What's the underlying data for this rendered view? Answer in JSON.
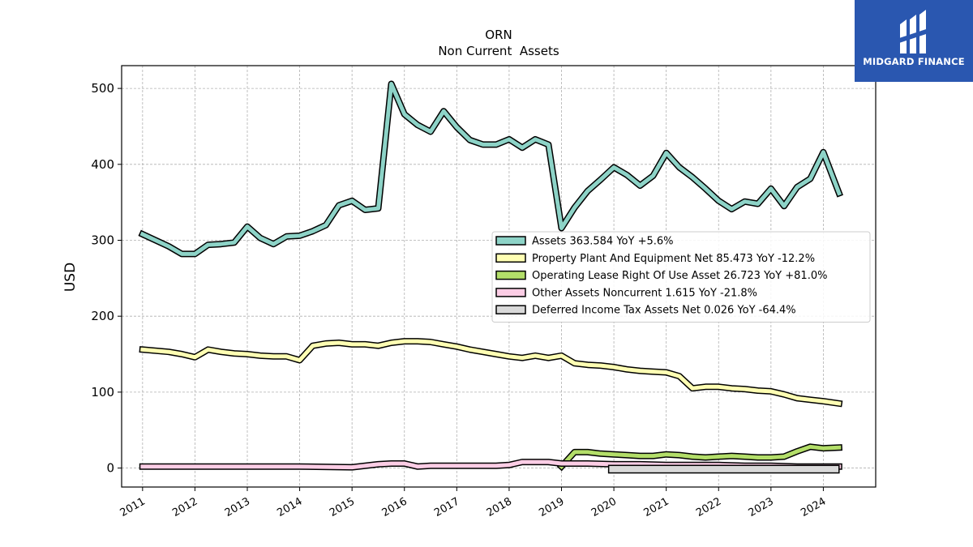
{
  "chart_data": {
    "type": "line",
    "title": "ORN",
    "subtitle": "Non Current  Assets",
    "ylabel": "USD",
    "xlabel": "",
    "xlim": [
      2010.6,
      2025.0
    ],
    "ylim": [
      -25,
      530
    ],
    "yticks": [
      0,
      100,
      200,
      300,
      400,
      500
    ],
    "xticks": [
      "2011",
      "2012",
      "2013",
      "2014",
      "2015",
      "2016",
      "2017",
      "2018",
      "2019",
      "2020",
      "2021",
      "2022",
      "2023",
      "2024"
    ],
    "grid": true,
    "legend_position": "right",
    "series": [
      {
        "name": "Assets  363.584 YoY +5.6%",
        "color": "#8dd3c7",
        "points": [
          [
            2011.0,
            308
          ],
          [
            2011.5,
            292
          ],
          [
            2011.75,
            282
          ],
          [
            2012.0,
            282
          ],
          [
            2012.25,
            294
          ],
          [
            2012.5,
            295
          ],
          [
            2012.75,
            297
          ],
          [
            2013.0,
            318
          ],
          [
            2013.25,
            303
          ],
          [
            2013.5,
            295
          ],
          [
            2013.75,
            305
          ],
          [
            2014.0,
            306
          ],
          [
            2014.25,
            312
          ],
          [
            2014.5,
            320
          ],
          [
            2014.75,
            346
          ],
          [
            2015.0,
            352
          ],
          [
            2015.25,
            340
          ],
          [
            2015.5,
            342
          ],
          [
            2015.75,
            506
          ],
          [
            2016.0,
            466
          ],
          [
            2016.25,
            452
          ],
          [
            2016.5,
            443
          ],
          [
            2016.75,
            470
          ],
          [
            2017.0,
            449
          ],
          [
            2017.25,
            432
          ],
          [
            2017.5,
            426
          ],
          [
            2017.75,
            426
          ],
          [
            2018.0,
            433
          ],
          [
            2018.25,
            422
          ],
          [
            2018.5,
            433
          ],
          [
            2018.75,
            426
          ],
          [
            2019.0,
            316
          ],
          [
            2019.25,
            343
          ],
          [
            2019.5,
            365
          ],
          [
            2019.75,
            380
          ],
          [
            2020.0,
            396
          ],
          [
            2020.25,
            386
          ],
          [
            2020.5,
            372
          ],
          [
            2020.75,
            385
          ],
          [
            2021.0,
            415
          ],
          [
            2021.25,
            396
          ],
          [
            2021.5,
            383
          ],
          [
            2021.75,
            368
          ],
          [
            2022.0,
            352
          ],
          [
            2022.25,
            341
          ],
          [
            2022.5,
            351
          ],
          [
            2022.75,
            348
          ],
          [
            2023.0,
            368
          ],
          [
            2023.25,
            345
          ],
          [
            2023.5,
            370
          ],
          [
            2023.75,
            381
          ],
          [
            2024.0,
            416
          ],
          [
            2024.3,
            362
          ]
        ]
      },
      {
        "name": "Property Plant And Equipment Net  85.473 YoY -12.2%",
        "color": "#ffffb3",
        "points": [
          [
            2011.0,
            156
          ],
          [
            2011.5,
            153
          ],
          [
            2011.75,
            150
          ],
          [
            2012.0,
            146
          ],
          [
            2012.25,
            156
          ],
          [
            2012.5,
            153
          ],
          [
            2012.75,
            151
          ],
          [
            2013.0,
            150
          ],
          [
            2013.25,
            148
          ],
          [
            2013.5,
            147
          ],
          [
            2013.75,
            147
          ],
          [
            2014.0,
            142
          ],
          [
            2014.25,
            161
          ],
          [
            2014.5,
            164
          ],
          [
            2014.75,
            165
          ],
          [
            2015.0,
            163
          ],
          [
            2015.25,
            163
          ],
          [
            2015.5,
            161
          ],
          [
            2015.75,
            165
          ],
          [
            2016.0,
            167
          ],
          [
            2016.25,
            167
          ],
          [
            2016.5,
            166
          ],
          [
            2016.75,
            163
          ],
          [
            2017.0,
            160
          ],
          [
            2017.25,
            156
          ],
          [
            2017.5,
            153
          ],
          [
            2017.75,
            150
          ],
          [
            2018.0,
            147
          ],
          [
            2018.25,
            145
          ],
          [
            2018.5,
            148
          ],
          [
            2018.75,
            145
          ],
          [
            2019.0,
            148
          ],
          [
            2019.25,
            138
          ],
          [
            2019.5,
            136
          ],
          [
            2019.75,
            135
          ],
          [
            2020.0,
            133
          ],
          [
            2020.25,
            130
          ],
          [
            2020.5,
            128
          ],
          [
            2020.75,
            127
          ],
          [
            2021.0,
            126
          ],
          [
            2021.25,
            121
          ],
          [
            2021.5,
            105
          ],
          [
            2021.75,
            107
          ],
          [
            2022.0,
            107
          ],
          [
            2022.25,
            105
          ],
          [
            2022.5,
            104
          ],
          [
            2022.75,
            102
          ],
          [
            2023.0,
            101
          ],
          [
            2023.25,
            97
          ],
          [
            2023.5,
            92
          ],
          [
            2023.75,
            90
          ],
          [
            2024.0,
            88
          ],
          [
            2024.3,
            85
          ]
        ]
      },
      {
        "name": "Operating Lease Right Of Use Asset  26.723 YoY +81.0%",
        "color": "#b3de69",
        "points": [
          [
            2019.0,
            2
          ],
          [
            2019.25,
            21
          ],
          [
            2019.5,
            21
          ],
          [
            2019.75,
            19
          ],
          [
            2020.0,
            18
          ],
          [
            2020.25,
            17
          ],
          [
            2020.5,
            16
          ],
          [
            2020.75,
            16
          ],
          [
            2021.0,
            18
          ],
          [
            2021.25,
            17
          ],
          [
            2021.5,
            15
          ],
          [
            2021.75,
            14
          ],
          [
            2022.0,
            15
          ],
          [
            2022.25,
            16
          ],
          [
            2022.5,
            15
          ],
          [
            2022.75,
            14
          ],
          [
            2023.0,
            14
          ],
          [
            2023.25,
            15
          ],
          [
            2023.5,
            22
          ],
          [
            2023.75,
            28
          ],
          [
            2024.0,
            26
          ],
          [
            2024.3,
            27
          ]
        ]
      },
      {
        "name": "Other Assets Noncurrent  1.615 YoY -21.8%",
        "color": "#fccde5",
        "points": [
          [
            2011.0,
            2
          ],
          [
            2012.0,
            2
          ],
          [
            2012.25,
            2
          ],
          [
            2013.0,
            2
          ],
          [
            2014.0,
            2
          ],
          [
            2015.0,
            1
          ],
          [
            2015.5,
            5
          ],
          [
            2015.75,
            6
          ],
          [
            2016.0,
            6
          ],
          [
            2016.25,
            2
          ],
          [
            2016.5,
            3
          ],
          [
            2017.0,
            3
          ],
          [
            2017.5,
            3
          ],
          [
            2017.75,
            3
          ],
          [
            2018.0,
            4
          ],
          [
            2018.25,
            8
          ],
          [
            2018.5,
            8
          ],
          [
            2018.75,
            8
          ],
          [
            2019.0,
            6
          ],
          [
            2019.5,
            6
          ],
          [
            2020.0,
            5
          ],
          [
            2020.5,
            5
          ],
          [
            2021.0,
            4
          ],
          [
            2021.5,
            4
          ],
          [
            2022.0,
            4
          ],
          [
            2022.5,
            3
          ],
          [
            2023.0,
            3
          ],
          [
            2023.5,
            2
          ],
          [
            2024.0,
            2
          ],
          [
            2024.3,
            2
          ]
        ]
      },
      {
        "name": "Deferred Income Tax Assets Net  0.026 YoY -64.4%",
        "color": "#d9d9d9",
        "bar_range": [
          2019.9,
          2024.3
        ],
        "bar_height": 3.5
      }
    ]
  },
  "logo": {
    "brand": "MIDGARD FINANCE"
  }
}
